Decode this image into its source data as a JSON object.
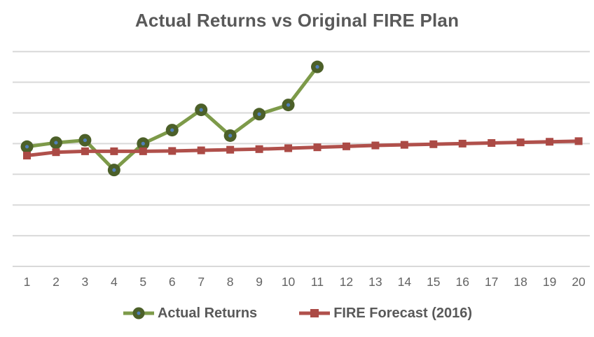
{
  "chart_data": {
    "type": "line",
    "title": "Actual Returns vs Original FIRE Plan",
    "xlabel": "",
    "ylabel": "",
    "x": [
      1,
      2,
      3,
      4,
      5,
      6,
      7,
      8,
      9,
      10,
      11,
      12,
      13,
      14,
      15,
      16,
      17,
      18,
      19,
      20
    ],
    "y_tick_labels_visible": false,
    "ylim": [
      0,
      7.3
    ],
    "gridline_values": [
      0,
      1,
      2,
      3,
      4,
      5,
      6,
      7
    ],
    "grid": "horizontal-only",
    "legend_position": "bottom-center",
    "series": [
      {
        "name": "Actual Returns",
        "marker": "circle",
        "line_color": "#7d9a49",
        "marker_color": "#4c6029",
        "marker_dot_color": "#4f7fba",
        "values": [
          3.9,
          4.03,
          4.11,
          3.14,
          4.0,
          4.44,
          5.1,
          4.26,
          4.96,
          5.26,
          6.5
        ]
      },
      {
        "name": "FIRE Forecast (2016)",
        "marker": "square",
        "line_color": "#b0504b",
        "marker_color": "#ab4a45",
        "values": [
          3.61,
          3.72,
          3.75,
          3.75,
          3.75,
          3.76,
          3.78,
          3.8,
          3.82,
          3.85,
          3.88,
          3.91,
          3.94,
          3.96,
          3.98,
          4.0,
          4.02,
          4.04,
          4.06,
          4.08
        ]
      }
    ]
  },
  "style": {
    "background": "#ffffff",
    "grid_color": "#d9d9d9",
    "title_color": "#595959",
    "tick_label_color": "#636363",
    "legend_text_color": "#595959"
  }
}
